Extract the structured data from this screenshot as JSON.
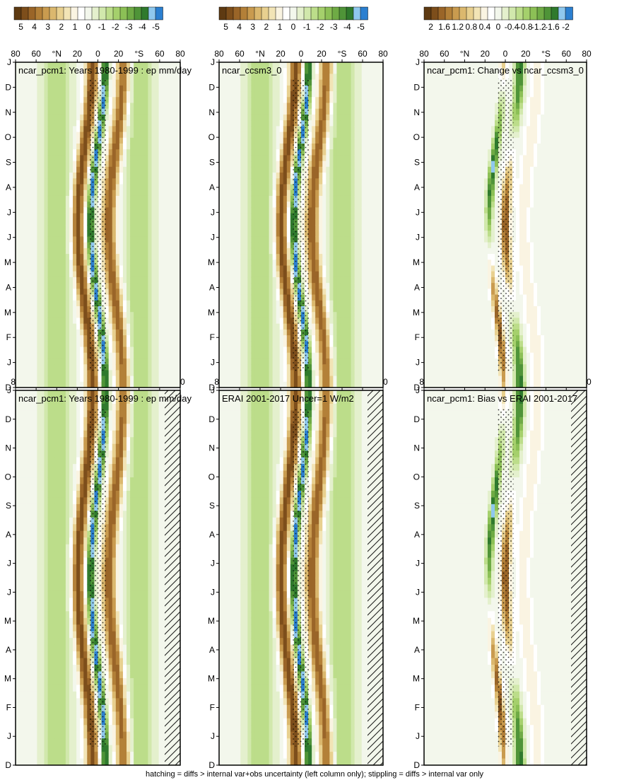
{
  "footer": "hatching = diffs > internal var+obs uncertainty (left column only); stippling = diffs > internal var only",
  "chart_data": {
    "type": "heatmap",
    "description_axes": {
      "months": [
        "D",
        "J",
        "F",
        "M",
        "A",
        "M",
        "J",
        "J",
        "A",
        "S",
        "O",
        "N",
        "D",
        "J"
      ],
      "latitudes": [
        "80",
        "60",
        "°N",
        "20",
        "0",
        "20",
        "°S",
        "60",
        "80"
      ]
    },
    "panels": [
      {
        "id": "p1",
        "title": "ncar_pcm1: Years 1980-1999 : ep mm/day",
        "kind": "abs",
        "hatch": true,
        "stipple": true
      },
      {
        "id": "p2",
        "title": "ncar_pcm1: Years 1980-1999 : ep mm/day",
        "kind": "abs",
        "hatch": false,
        "stipple": true
      },
      {
        "id": "p3",
        "title": "ERAI 2001-2017 Uncer=1 W/m2",
        "kind": "abs",
        "hatch": true,
        "stipple": true
      },
      {
        "id": "p4",
        "title": "ncar_ccsm3_0",
        "kind": "abs",
        "hatch": false,
        "stipple": true
      },
      {
        "id": "p5",
        "title": "ncar_pcm1: Bias vs ERAI 2001-2017",
        "kind": "diff",
        "hatch": true,
        "stipple": true
      },
      {
        "id": "p6",
        "title": "ncar_pcm1: Change vs ncar_ccsm3_0",
        "kind": "diff",
        "hatch": false,
        "stipple": true
      }
    ],
    "colorbar_abs": {
      "labels": [
        "5",
        "4",
        "3",
        "2",
        "1",
        "0",
        "-1",
        "-2",
        "-3",
        "-4",
        "-5"
      ],
      "colors": [
        "#5e3a12",
        "#7d4e1b",
        "#9a6528",
        "#b38038",
        "#c99b4f",
        "#dbb86e",
        "#e8d08f",
        "#f2e4b6",
        "#faf4e2",
        "#ffffff",
        "#f3f7ec",
        "#e4f0cd",
        "#d1e8ac",
        "#bcdd8a",
        "#a5d06c",
        "#8cc056",
        "#6fab45",
        "#4f9438",
        "#2f7a2d",
        "#8fc8ee",
        "#2b7fd0"
      ]
    },
    "colorbar_diff": {
      "labels": [
        "2",
        "1.6",
        "1.2",
        "0.8",
        "0.4",
        "0",
        "-0.4",
        "-0.8",
        "-1.2",
        "-1.6",
        "-2"
      ],
      "colors": [
        "#5e3a12",
        "#7d4e1b",
        "#9a6528",
        "#b38038",
        "#c99b4f",
        "#dbb86e",
        "#e8d08f",
        "#f2e4b6",
        "#faf4e2",
        "#ffffff",
        "#f3f7ec",
        "#e4f0cd",
        "#d1e8ac",
        "#bcdd8a",
        "#a5d06c",
        "#8cc056",
        "#6fab45",
        "#4f9438",
        "#2f7a2d",
        "#8fc8ee",
        "#2b7fd0"
      ]
    }
  }
}
